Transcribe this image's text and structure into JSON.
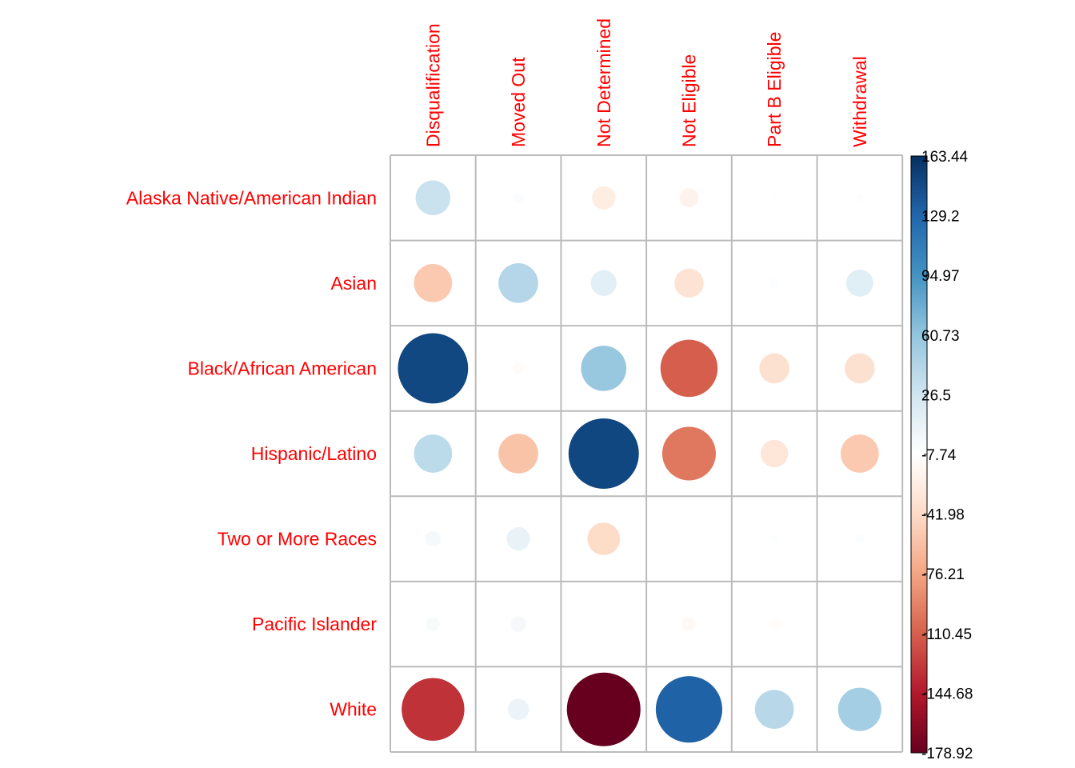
{
  "chart_data": {
    "type": "heatmap",
    "title": "",
    "rows": [
      "Alaska Native/American Indian",
      "Asian",
      "Black/African American",
      "Hispanic/Latino",
      "Two or More Races",
      "Pacific Islander",
      "White"
    ],
    "columns": [
      "Disqualification",
      "Moved Out",
      "Not Determined",
      "Not Eligible",
      "Part B Eligible",
      "Withdrawal"
    ],
    "values": [
      [
        40,
        4,
        -18,
        -12,
        1,
        -2
      ],
      [
        -48,
        52,
        22,
        -28,
        3,
        24
      ],
      [
        163,
        -4,
        68,
        -108,
        -30,
        -30
      ],
      [
        48,
        -52,
        163.44,
        -95,
        -25,
        -48
      ],
      [
        8,
        18,
        -35,
        0,
        2,
        3
      ],
      [
        6,
        8,
        -1,
        -6,
        -3,
        0
      ],
      [
        -130,
        15,
        -178.92,
        146,
        50,
        62
      ]
    ],
    "colorbar": {
      "min": -178.92,
      "max": 163.44,
      "ticks": [
        "163.44",
        "129.2",
        "94.97",
        "60.73",
        "26.5",
        "-7.74",
        "-41.98",
        "-76.21",
        "-110.45",
        "-144.68",
        "-178.92"
      ]
    },
    "colors": {
      "positive_max": "#053061",
      "negative_max": "#67001F",
      "label": "#ff0000",
      "grid": "#bbbbbb"
    }
  }
}
